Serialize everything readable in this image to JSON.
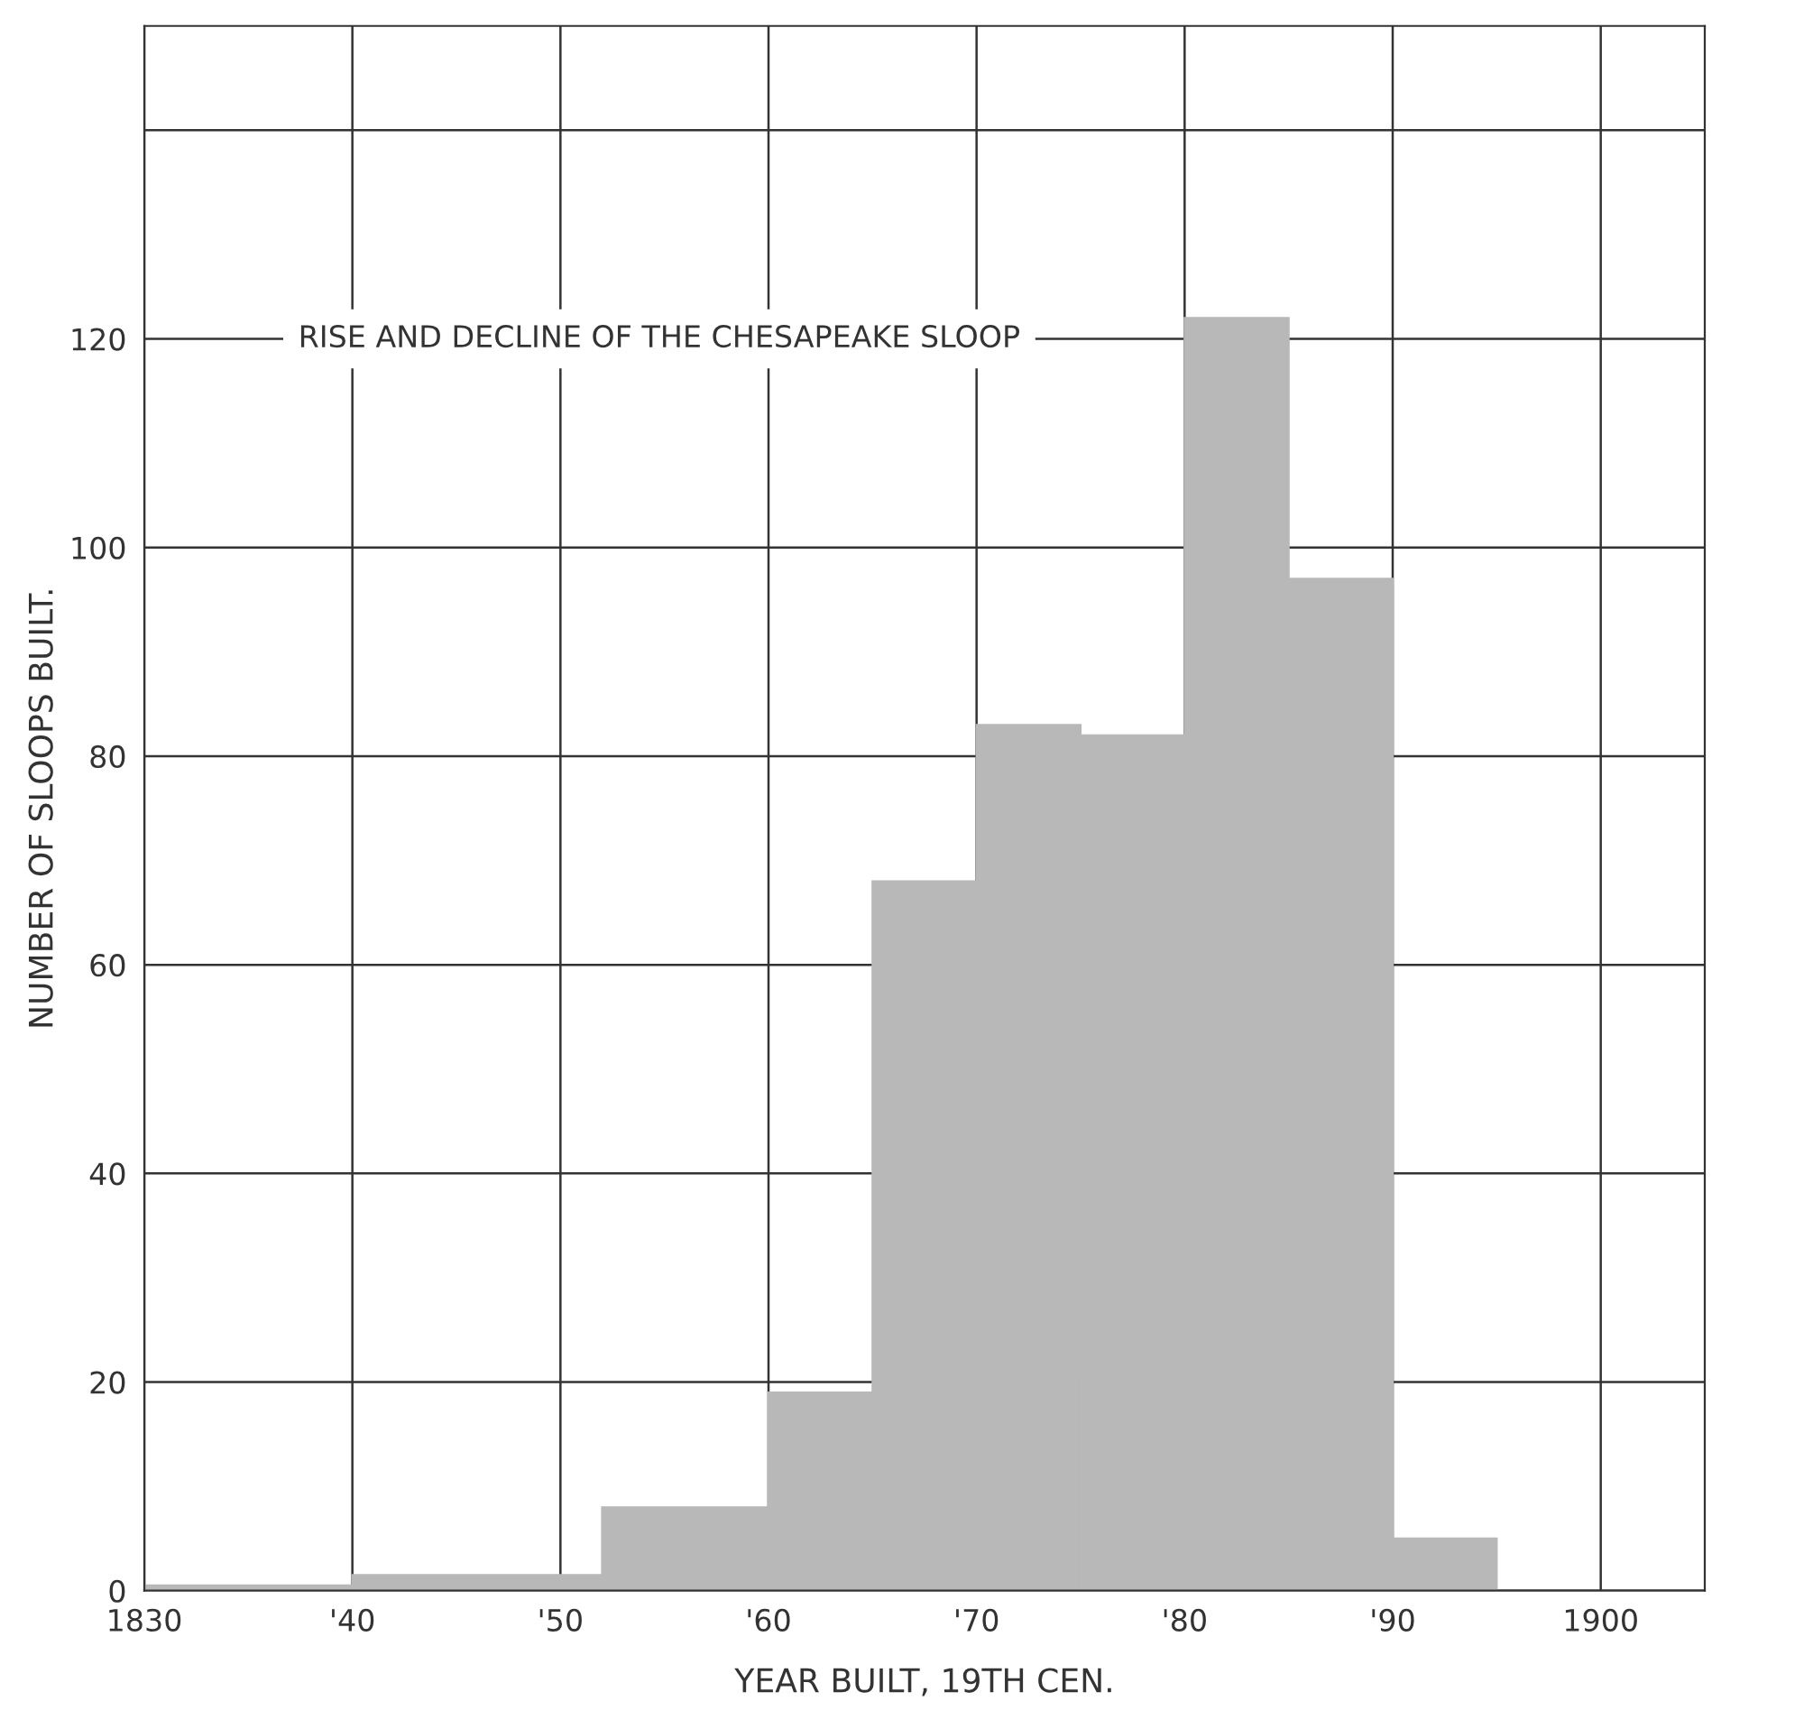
{
  "chart_data": {
    "type": "histogram",
    "title": "RISE AND DECLINE OF THE CHESAPEAKE SLOOP",
    "xlabel": "YEAR BUILT, 19TH CEN.",
    "ylabel": "NUMBER OF SLOOPS BUILT.",
    "bins": [
      1830,
      1840,
      1852,
      1860,
      1865,
      1870,
      1875,
      1880,
      1885,
      1890,
      1895
    ],
    "values": [
      0.5,
      1.5,
      8,
      19,
      68,
      83,
      82,
      122,
      97,
      5
    ],
    "color": "#b8b8b8",
    "xlim": [
      1830,
      1905
    ],
    "ylim": [
      0,
      150
    ],
    "xticks": [
      {
        "value": 1830,
        "label": "1830"
      },
      {
        "value": 1840,
        "label": "'40"
      },
      {
        "value": 1850,
        "label": "'50"
      },
      {
        "value": 1860,
        "label": "'60"
      },
      {
        "value": 1870,
        "label": "'70"
      },
      {
        "value": 1880,
        "label": "'80"
      },
      {
        "value": 1890,
        "label": "'90"
      },
      {
        "value": 1900,
        "label": "1900"
      }
    ],
    "yticks": [
      0,
      20,
      40,
      60,
      80,
      100,
      120,
      {
        "value": 140,
        "label": null
      }
    ],
    "grid": true
  }
}
